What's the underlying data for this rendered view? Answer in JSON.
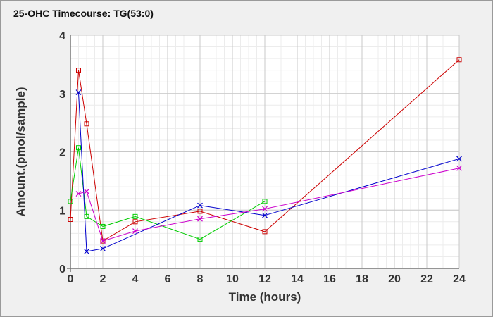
{
  "chart_data": {
    "type": "line",
    "title": "25-OHC Timecourse: TG(53:0)",
    "xlabel": "Time (hours)",
    "ylabel": "Amount.(pmol/sample)",
    "xlim": [
      0,
      24
    ],
    "ylim": [
      0,
      4
    ],
    "xticks": [
      0,
      2,
      4,
      6,
      8,
      10,
      12,
      14,
      16,
      18,
      20,
      22,
      24
    ],
    "yticks": [
      0,
      1,
      2,
      3,
      4
    ],
    "grid": true,
    "legend": "none",
    "series": [
      {
        "color": "#cc0000",
        "marker": "square",
        "x": [
          0,
          0.5,
          1,
          2,
          4,
          8,
          12,
          24
        ],
        "y": [
          0.84,
          3.4,
          2.48,
          0.47,
          0.8,
          0.98,
          0.63,
          3.58
        ]
      },
      {
        "color": "#00cc00",
        "marker": "square",
        "x": [
          0,
          0.5,
          1,
          2,
          4,
          8,
          12
        ],
        "y": [
          1.15,
          2.07,
          0.89,
          0.72,
          0.89,
          0.5,
          1.15
        ]
      },
      {
        "color": "#0000cc",
        "marker": "x",
        "x": [
          0.5,
          1,
          2,
          8,
          12,
          24
        ],
        "y": [
          3.02,
          0.29,
          0.34,
          1.08,
          0.91,
          1.88
        ]
      },
      {
        "color": "#cc00cc",
        "marker": "x",
        "x": [
          0.5,
          1,
          2,
          4,
          8,
          12,
          24
        ],
        "y": [
          1.28,
          1.32,
          0.47,
          0.64,
          0.85,
          1.02,
          1.72
        ]
      }
    ]
  }
}
